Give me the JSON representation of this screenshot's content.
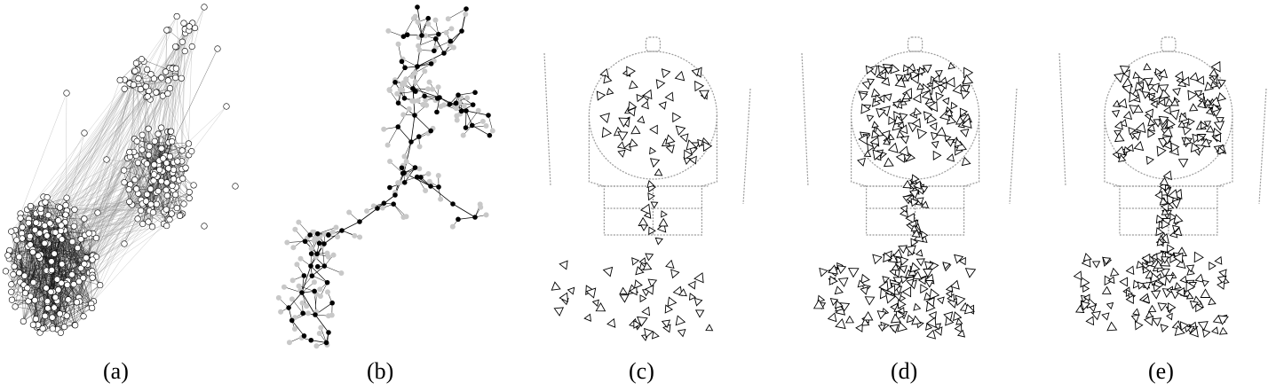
{
  "panels": [
    {
      "id": "a",
      "caption": "(a)"
    },
    {
      "id": "b",
      "caption": "(b)"
    },
    {
      "id": "c",
      "caption": "(c)"
    },
    {
      "id": "d",
      "caption": "(d)"
    },
    {
      "id": "e",
      "caption": "(e)"
    }
  ],
  "colors": {
    "edge_dark": "#111111",
    "edge_light": "#8a8a8a",
    "node_white": "#ffffff",
    "node_black": "#000000",
    "node_gray": "#c8c8c8",
    "scan": "#9a9a9a"
  },
  "icons": {
    "b_node_black": "filled-black-circle",
    "b_node_gray": "filled-gray-circle",
    "cde_marker": "triangle-outline"
  }
}
